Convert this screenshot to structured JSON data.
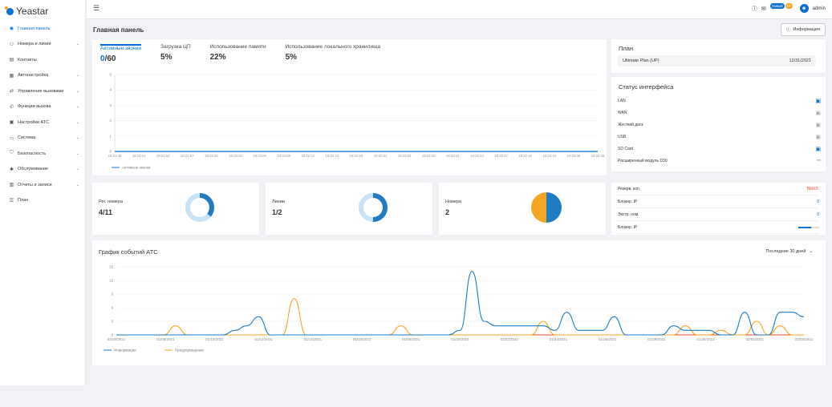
{
  "brand": {
    "name": "Yeastar"
  },
  "sidebar": {
    "items": [
      {
        "label": "Главная панель",
        "icon": "dashboard-icon",
        "glyph": "◉",
        "chev": ""
      },
      {
        "label": "Номера и линии",
        "icon": "users-icon",
        "glyph": "⚇",
        "chev": "⌄"
      },
      {
        "label": "Контакты",
        "icon": "contacts-icon",
        "glyph": "▤",
        "chev": ""
      },
      {
        "label": "Автонастройка",
        "icon": "phone-setup-icon",
        "glyph": "▦",
        "chev": "⌄"
      },
      {
        "label": "Управление вызовами",
        "icon": "call-control-icon",
        "glyph": "⇄",
        "chev": "⌄"
      },
      {
        "label": "Функции вызова",
        "icon": "call-features-icon",
        "glyph": "✆",
        "chev": "⌄"
      },
      {
        "label": "Настройки АТС",
        "icon": "pbx-settings-icon",
        "glyph": "▣",
        "chev": "⌄"
      },
      {
        "label": "Система",
        "icon": "system-icon",
        "glyph": "▭",
        "chev": "⌄"
      },
      {
        "label": "Безопасность",
        "icon": "security-icon",
        "glyph": "⛉",
        "chev": "⌄"
      },
      {
        "label": "Обслуживание",
        "icon": "maintenance-icon",
        "glyph": "✱",
        "chev": "⌄"
      },
      {
        "label": "Отчеты и записи",
        "icon": "reports-icon",
        "glyph": "▥",
        "chev": "⌄"
      },
      {
        "label": "План",
        "icon": "plan-icon",
        "glyph": "☰",
        "chev": ""
      }
    ]
  },
  "topbar": {
    "new_badge": "Новый",
    "count_badge": "99",
    "user": "admin"
  },
  "page_title": "Главная панель",
  "info_button": "Информация",
  "tabs": [
    {
      "label": "Активные звонки",
      "value_a": "0",
      "value_b": "/60"
    },
    {
      "label": "Загрузка ЦП",
      "value_a": "",
      "value_b": "5%"
    },
    {
      "label": "Использование памяти",
      "value_a": "",
      "value_b": "22%"
    },
    {
      "label": "Использование локального хранилища",
      "value_a": "",
      "value_b": "5%"
    }
  ],
  "calls_chart": {
    "ylim": [
      0,
      5
    ],
    "yticks": [
      "0",
      "1",
      "2",
      "3",
      "4",
      "5"
    ],
    "xticks": [
      "19:21:48",
      "19:21:51",
      "19:21:54",
      "19:21:57",
      "19:22:00",
      "19:22:03",
      "19:22:06",
      "19:22:09",
      "19:22:12",
      "19:22:15",
      "19:22:18",
      "19:22:21",
      "19:22:24",
      "19:22:28",
      "19:22:31",
      "19:22:34",
      "19:22:37",
      "19:22:40",
      "19:22:43",
      "19:22:46",
      "19:22:49"
    ],
    "legend": "Активные звонки",
    "color": "#0a6fd3"
  },
  "plan": {
    "title": "План",
    "name": "Ultimate Plan (UP)",
    "date": "12/31/2021"
  },
  "interface": {
    "title": "Статус интерфейса",
    "items": [
      {
        "label": "LAN",
        "icon": "lan-icon"
      },
      {
        "label": "WAN",
        "icon": "wan-icon"
      },
      {
        "label": "Жесткий диск",
        "icon": "hdd-icon"
      },
      {
        "label": "USB",
        "icon": "usb-icon"
      },
      {
        "label": "SD Card",
        "icon": "sdcard-icon"
      },
      {
        "label": "Расширенный модуль D30",
        "icon": "module-icon"
      }
    ]
  },
  "stats": [
    {
      "label": "Рег. номера",
      "value": "4/11",
      "fraction": 0.36
    },
    {
      "label": "Линии",
      "value": "1/2",
      "fraction": 0.5
    },
    {
      "label": "Номера",
      "value": "2"
    }
  ],
  "ext": {
    "rows": [
      {
        "label": "Резерв. коп.",
        "value": "ВЫКЛ."
      },
      {
        "label": "Блокир. IP",
        "value": "0"
      },
      {
        "label": "Экстр. ном.",
        "value": "0"
      },
      {
        "label": "Блокир. IP",
        "value": ""
      }
    ]
  },
  "events": {
    "title": "График событий АТС",
    "range": "Последние 30 дней",
    "ylim": [
      0,
      15
    ],
    "yticks": [
      "0",
      "3",
      "6",
      "9",
      "12",
      "15"
    ],
    "xticks": [
      "01/06/2021",
      "01/08/2021",
      "01/10/2021",
      "01/12/2021",
      "01/14/2021",
      "01/16/2021",
      "01/18/2021",
      "01/20/2021",
      "01/22/2021",
      "01/24/2021",
      "01/26/2021",
      "01/28/2021",
      "01/30/2021",
      "02/01/2021",
      "02/03/2021"
    ],
    "series": [
      {
        "name": "Информация",
        "color": "#1f7bc4",
        "values": [
          0,
          0,
          0,
          0,
          0,
          0,
          0,
          0,
          0,
          0,
          1,
          2,
          4,
          0,
          0,
          0,
          0,
          0,
          0,
          0,
          0,
          0,
          0,
          0,
          0,
          0,
          0,
          0,
          0,
          1,
          14,
          3,
          2,
          2,
          2,
          2,
          2,
          1,
          5,
          1,
          1,
          1,
          4,
          0,
          0,
          0,
          0,
          2,
          1,
          1,
          1,
          0,
          0,
          5,
          0,
          0,
          5,
          5,
          4
        ]
      },
      {
        "name": "Предупреждение",
        "color": "#f5a623",
        "values": [
          0,
          0,
          0,
          0,
          0,
          2,
          0,
          0,
          0,
          0,
          0,
          0,
          0,
          0,
          0,
          8,
          0,
          0,
          0,
          0,
          0,
          0,
          0,
          0,
          2,
          0,
          0,
          0,
          0,
          0,
          0,
          0,
          0,
          0,
          0,
          0,
          3,
          0,
          0,
          0,
          0,
          0,
          0,
          0,
          0,
          0,
          0,
          0,
          2,
          0,
          0,
          1,
          0,
          0,
          3,
          0,
          2,
          0,
          0
        ]
      },
      {
        "name": "",
        "color": "#e8492e",
        "values": [
          0,
          0,
          0,
          0,
          0,
          0,
          0,
          0,
          0,
          0,
          0,
          0,
          0,
          0,
          0,
          0,
          0,
          0,
          0,
          0,
          0,
          0,
          0,
          0,
          0,
          0,
          0,
          0,
          0,
          0,
          0,
          0,
          0,
          0,
          0,
          0,
          0,
          0,
          0,
          0,
          0,
          0,
          0,
          0,
          0,
          0,
          0,
          0,
          0,
          0,
          0,
          0,
          0,
          0,
          0,
          0,
          0,
          0,
          0
        ]
      }
    ]
  }
}
